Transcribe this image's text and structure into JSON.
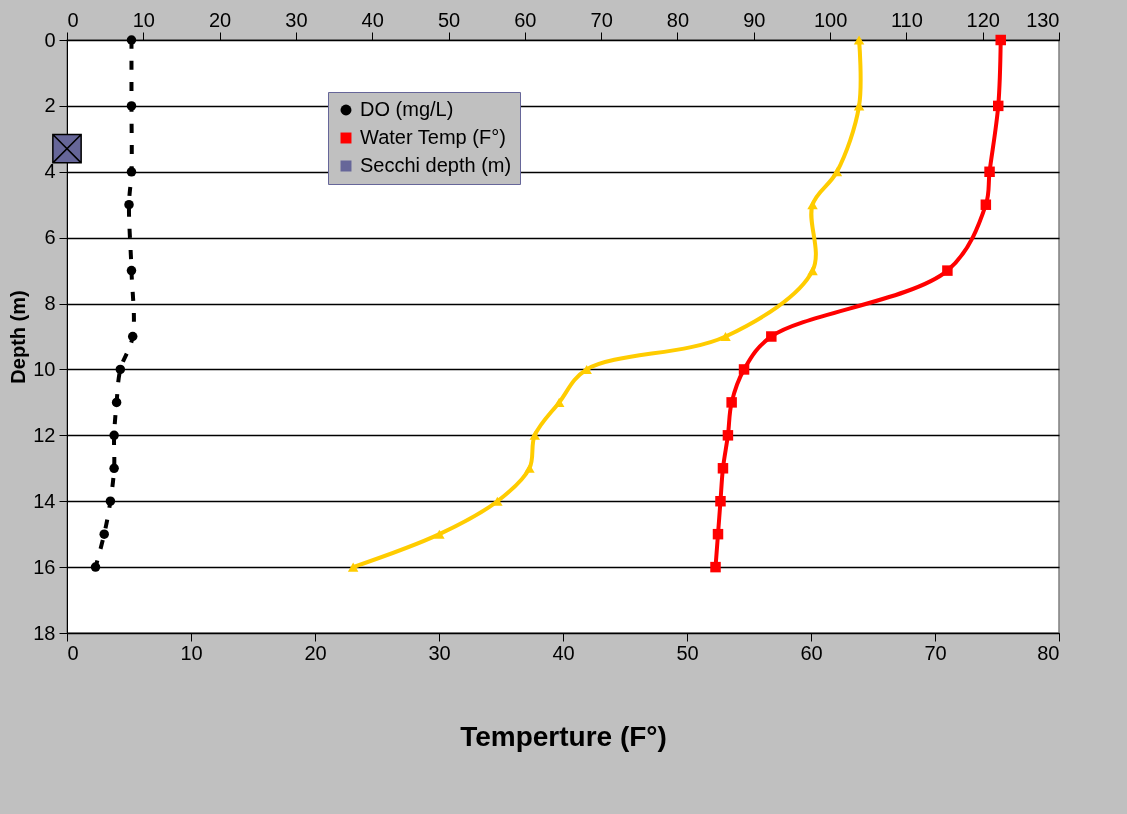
{
  "chart_data": {
    "type": "line",
    "xlabel": "Temperture (F°)",
    "ylabel": "Depth (m)",
    "xlim": [
      0,
      80
    ],
    "xticks": [
      0,
      10,
      20,
      30,
      40,
      50,
      60,
      70,
      80
    ],
    "x2lim": [
      0,
      130
    ],
    "x2ticks": [
      0,
      10,
      20,
      30,
      40,
      50,
      60,
      70,
      80,
      90,
      100,
      110,
      120,
      130
    ],
    "ylim": [
      18,
      0
    ],
    "yticks": [
      0,
      2,
      4,
      6,
      8,
      10,
      12,
      14,
      16,
      18
    ],
    "grid": "y",
    "legend": "top",
    "series": [
      {
        "name": "DO (mg/L)",
        "color": "#000000",
        "marker": "circle",
        "line_style": "dashed",
        "x": [
          5.2,
          5.2,
          5.2,
          5.0,
          5.2,
          5.3,
          4.3,
          4.0,
          3.8,
          3.8,
          3.5,
          3.0,
          2.3
        ],
        "values": [
          0,
          2,
          4,
          5,
          7,
          9,
          10,
          11,
          12,
          13,
          14,
          15,
          16
        ]
      },
      {
        "name": "Water Temp (F°)",
        "color": "#ff0000",
        "marker": "square",
        "line_style": "solid",
        "x": [
          75.3,
          75.1,
          74.4,
          74.1,
          71.0,
          56.8,
          54.6,
          53.6,
          53.3,
          52.9,
          52.7,
          52.5,
          52.3
        ],
        "values": [
          0,
          2,
          4,
          5,
          7,
          9,
          10,
          11,
          12,
          13,
          14,
          15,
          16
        ]
      },
      {
        "name": "Secchi depth (m)",
        "type": "scatter",
        "color": "#666699",
        "marker": "cross",
        "x": [
          0
        ],
        "values": [
          3.3
        ]
      },
      {
        "axis": "x2",
        "color": "#ffcc00",
        "marker": "triangle",
        "line_style": "solid",
        "x": [
          103.8,
          103.8,
          100.9,
          97.7,
          97.7,
          86.3,
          68.1,
          64.5,
          61.3,
          60.6,
          56.4,
          48.8,
          37.5
        ],
        "values": [
          0,
          2,
          4,
          5,
          7,
          9,
          10,
          11,
          12,
          13,
          14,
          15,
          16
        ]
      }
    ]
  }
}
